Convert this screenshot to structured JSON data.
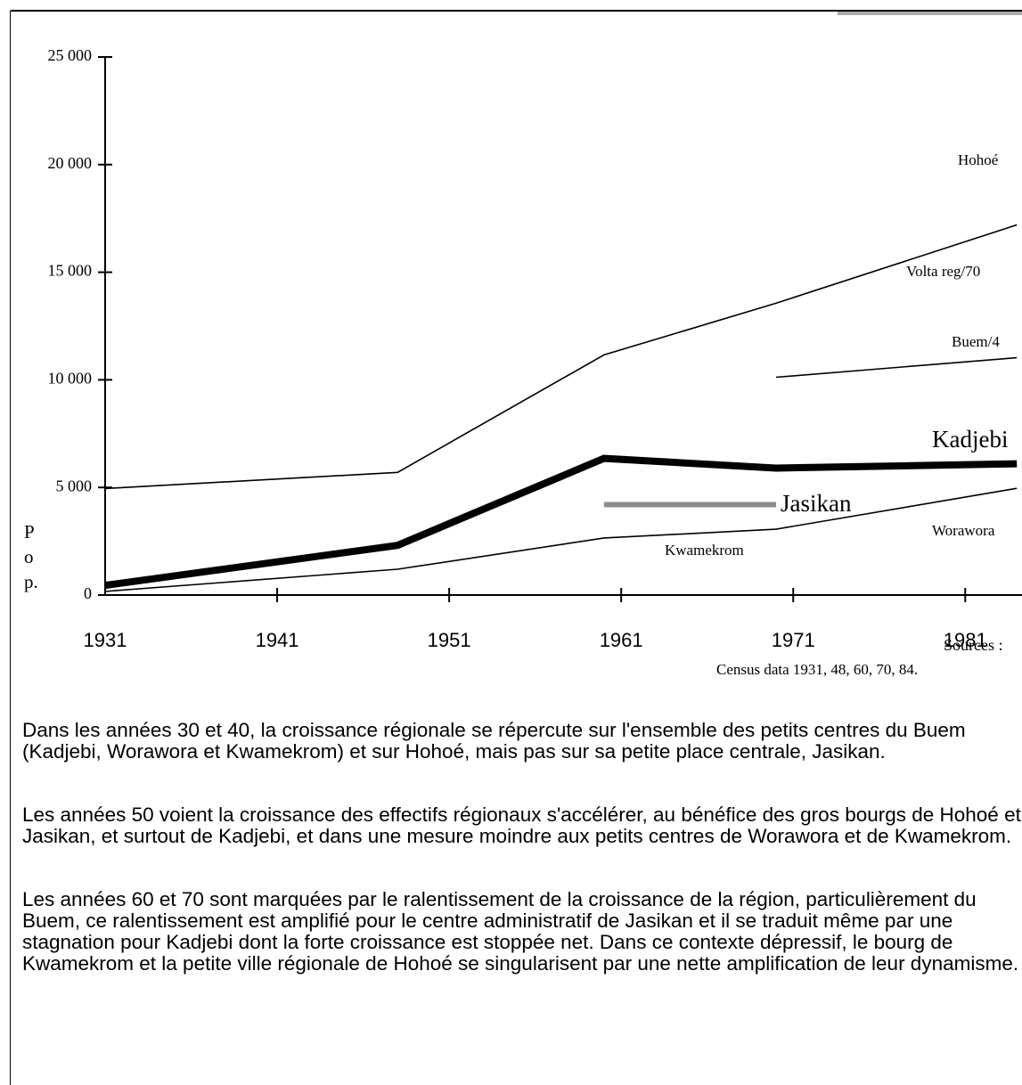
{
  "chart_data": {
    "type": "line",
    "xlim": [
      1931,
      1984.3
    ],
    "xticks": [
      1931,
      1941,
      1951,
      1961,
      1971,
      1981
    ],
    "ylim": [
      0,
      25000
    ],
    "yticks": [
      0,
      {
        "value": 5000,
        "label": "5 000"
      },
      {
        "value": 10000,
        "label": "10 000"
      },
      {
        "value": 15000,
        "label": "15 000"
      },
      {
        "value": 20000,
        "label": "20 000"
      },
      {
        "value": 25000,
        "label": "25 000"
      }
    ],
    "ylabel": "P o p.",
    "series": [
      {
        "name": "Volta reg/70",
        "color": "#000000",
        "x": [
          1931,
          1948,
          1960,
          1970,
          1984
        ],
        "values": [
          4950,
          5700,
          11160,
          13560,
          17200
        ]
      },
      {
        "name": "Buem/4",
        "color": "#000000",
        "x": [
          1970,
          1984
        ],
        "values": [
          10120,
          11030
        ]
      },
      {
        "name": "Kadjebi",
        "color": "#000000",
        "x": [
          1931,
          1948,
          1960,
          1970,
          1984
        ],
        "values": [
          450,
          2310,
          6350,
          5900,
          6100
        ]
      },
      {
        "name": "Jasikan",
        "color": "#8c8c8c",
        "x": [
          1960,
          1970
        ],
        "values": [
          4200,
          4200
        ]
      },
      {
        "name": "Worawora",
        "color": "#000000",
        "x": [
          1931,
          1948,
          1960,
          1970,
          1984
        ],
        "values": [
          170,
          1200,
          2650,
          3060,
          4960
        ]
      }
    ],
    "annotations": [
      "Hohoé",
      "Kwamekrom"
    ],
    "source": [
      "Sources :",
      "Census data 1931, 48, 60, 70, 84."
    ]
  },
  "paragraphs": [
    "Dans les années 30 et 40, la croissance régionale se répercute sur l'ensemble des petits centres du Buem (Kadjebi, Worawora et Kwamekrom) et sur Hohoé, mais pas sur sa petite place centrale, Jasikan.",
    "Les années 50 voient la croissance des effectifs régionaux s'accélérer, au bénéfice des gros bourgs de Hohoé et Jasikan, et surtout de Kadjebi, et dans une mesure moindre aux petits centres de Worawora et de Kwamekrom.",
    "Les années 60 et 70 sont marquées par le ralentissement de la croissance de la région, particulièrement du Buem, ce ralentissement est amplifié pour le centre administratif de Jasikan et il se traduit même par une stagnation pour Kadjebi dont la forte croissance est stoppée net. Dans ce contexte dépressif, le bourg de Kwamekrom et la petite ville régionale de Hohoé se singularisent par une nette amplification de leur dynamisme."
  ]
}
